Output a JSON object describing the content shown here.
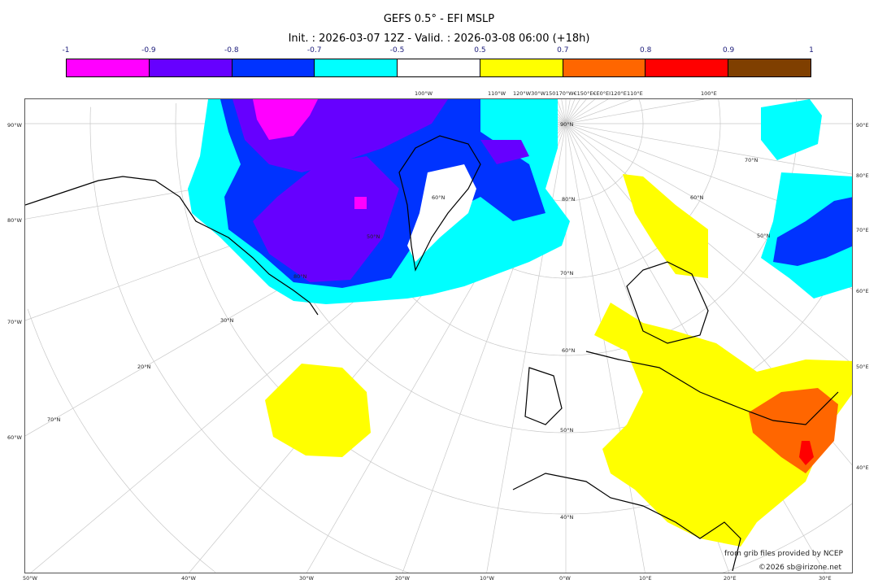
{
  "title": "GEFS 0.5° - EFI MSLP",
  "subtitle": "Init. : 2026-03-07 12Z - Valid. : 2026-03-08 06:00 (+18h)",
  "colorbar": {
    "ticks": [
      "-1",
      "-0.9",
      "-0.8",
      "-0.7",
      "-0.5",
      "0.5",
      "0.7",
      "0.8",
      "0.9",
      "1"
    ],
    "colors": [
      "#ff00ff",
      "#6600ff",
      "#0033ff",
      "#00ffff",
      "#ffffff",
      "#ffff00",
      "#ff6600",
      "#ff0000",
      "#7f3f00"
    ]
  },
  "axes": {
    "left": [
      "90°W",
      "80°W",
      "70°W",
      "60°W"
    ],
    "bottom": [
      "50°W",
      "40°W",
      "30°W",
      "20°W",
      "10°W",
      "0°W",
      "10°E",
      "20°E",
      "30°E"
    ],
    "right": [
      "90°E",
      "80°E",
      "70°E",
      "60°E",
      "50°E",
      "40°E"
    ],
    "top": [
      "100°W",
      "110°W",
      "120°W30°W150170°W€150°E€E0°EI120°E",
      "110°E",
      "100°E"
    ],
    "inner": [
      "90°N",
      "80°N",
      "70°N",
      "60°N",
      "50°N",
      "40°N",
      "30°N",
      "20°N",
      "70°N",
      "60°N",
      "50°N",
      "80°N",
      "70°N",
      "60°N",
      "50°N"
    ]
  },
  "credits": {
    "line1": "from grib files provided by NCEP",
    "line2": "©2026 sb@irizone.net"
  }
}
